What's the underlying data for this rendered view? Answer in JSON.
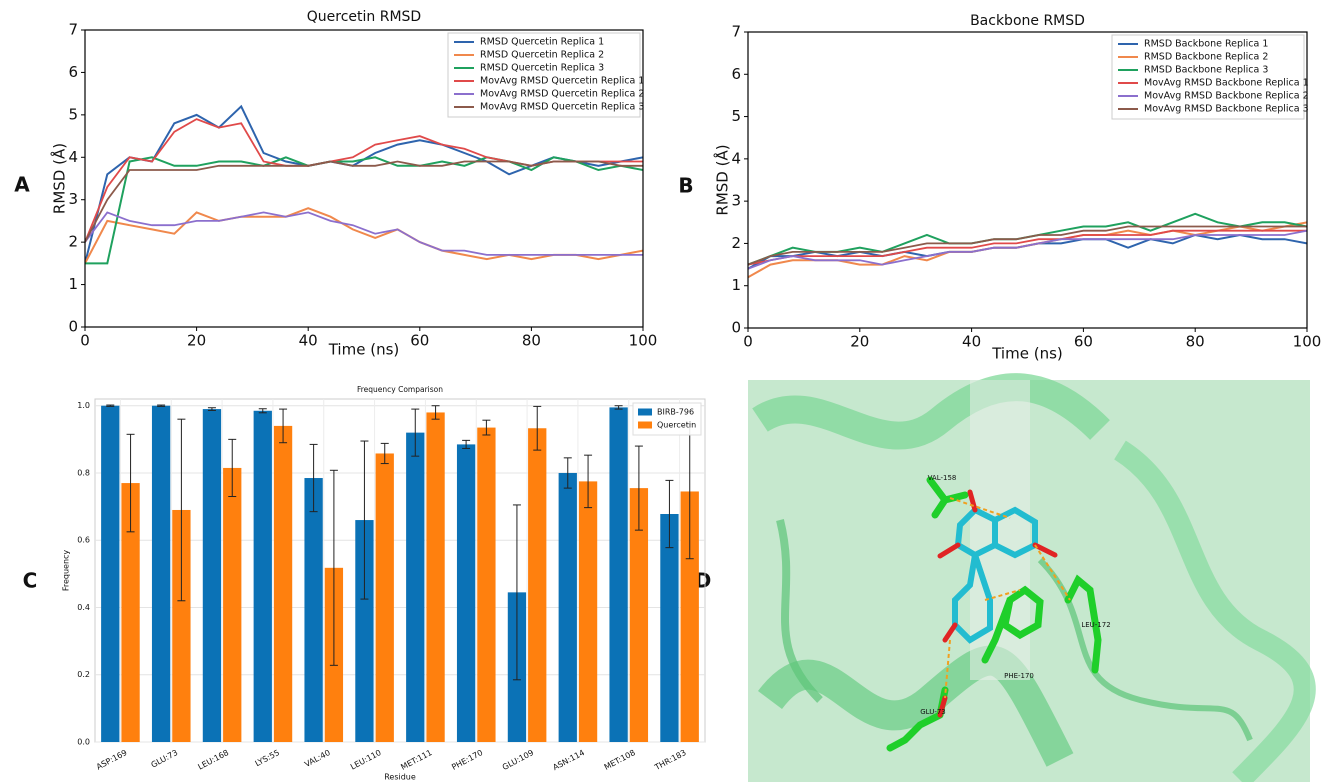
{
  "panel_labels": [
    "A",
    "B",
    "C",
    "D"
  ],
  "structure": {
    "labels": [
      "VAL-158",
      "LEU-172",
      "PHE-170",
      "GLU-73"
    ]
  },
  "chart_data": [
    {
      "type": "line",
      "title": "Quercetin  RMSD",
      "x_label": "Time (ns)",
      "y_label": "RMSD (Å)",
      "x": [
        0,
        4,
        8,
        12,
        16,
        20,
        24,
        28,
        32,
        36,
        40,
        44,
        48,
        52,
        56,
        60,
        64,
        68,
        72,
        76,
        80,
        84,
        88,
        92,
        96,
        100
      ],
      "xlim": [
        0,
        100
      ],
      "ylim": [
        0,
        7
      ],
      "xticks": [
        0,
        20,
        40,
        60,
        80,
        100
      ],
      "yticks": [
        0,
        1,
        2,
        3,
        4,
        5,
        6,
        7
      ],
      "legend": "upper right",
      "series": [
        {
          "name": "RMSD Quercetin Replica 1",
          "color": "#2e64ad",
          "values": [
            1.5,
            3.6,
            4.0,
            3.9,
            4.8,
            5.0,
            4.7,
            5.2,
            4.1,
            3.9,
            3.8,
            3.9,
            3.8,
            4.1,
            4.3,
            4.4,
            4.3,
            4.1,
            3.9,
            3.6,
            3.8,
            4.0,
            3.9,
            3.8,
            3.9,
            4.0
          ]
        },
        {
          "name": "RMSD Quercetin Replica 2",
          "color": "#f0884c",
          "values": [
            1.5,
            2.5,
            2.4,
            2.3,
            2.2,
            2.7,
            2.5,
            2.6,
            2.6,
            2.6,
            2.8,
            2.6,
            2.3,
            2.1,
            2.3,
            2.0,
            1.8,
            1.7,
            1.6,
            1.7,
            1.6,
            1.7,
            1.7,
            1.6,
            1.7,
            1.8
          ]
        },
        {
          "name": "RMSD Quercetin Replica 3",
          "color": "#1fa15e",
          "values": [
            1.5,
            1.5,
            3.9,
            4.0,
            3.8,
            3.8,
            3.9,
            3.9,
            3.8,
            4.0,
            3.8,
            3.9,
            3.9,
            4.0,
            3.8,
            3.8,
            3.9,
            3.8,
            4.0,
            3.9,
            3.7,
            4.0,
            3.9,
            3.7,
            3.8,
            3.7
          ]
        },
        {
          "name": "MovAvg RMSD Quercetin Replica 1",
          "color": "#e04a4a",
          "values": [
            2.0,
            3.3,
            4.0,
            3.9,
            4.6,
            4.9,
            4.7,
            4.8,
            3.9,
            3.8,
            3.8,
            3.9,
            4.0,
            4.3,
            4.4,
            4.5,
            4.3,
            4.2,
            4.0,
            3.9,
            3.8,
            3.9,
            3.9,
            3.9,
            3.9,
            3.9
          ]
        },
        {
          "name": "MovAvg RMSD Quercetin Replica 2",
          "color": "#8b6fcd",
          "values": [
            2.0,
            2.7,
            2.5,
            2.4,
            2.4,
            2.5,
            2.5,
            2.6,
            2.7,
            2.6,
            2.7,
            2.5,
            2.4,
            2.2,
            2.3,
            2.0,
            1.8,
            1.8,
            1.7,
            1.7,
            1.7,
            1.7,
            1.7,
            1.7,
            1.7,
            1.7
          ]
        },
        {
          "name": "MovAvg RMSD Quercetin Replica 3",
          "color": "#8c5a4b",
          "values": [
            2.0,
            3.0,
            3.7,
            3.7,
            3.7,
            3.7,
            3.8,
            3.8,
            3.8,
            3.8,
            3.8,
            3.9,
            3.8,
            3.8,
            3.9,
            3.8,
            3.8,
            3.9,
            3.9,
            3.9,
            3.8,
            3.9,
            3.9,
            3.9,
            3.8,
            3.8
          ]
        }
      ]
    },
    {
      "type": "line",
      "title": "Backbone RMSD",
      "x_label": "Time (ns)",
      "y_label": "RMSD (Å)",
      "x": [
        0,
        4,
        8,
        12,
        16,
        20,
        24,
        28,
        32,
        36,
        40,
        44,
        48,
        52,
        56,
        60,
        64,
        68,
        72,
        76,
        80,
        84,
        88,
        92,
        96,
        100
      ],
      "xlim": [
        0,
        100
      ],
      "ylim": [
        0,
        7
      ],
      "xticks": [
        0,
        20,
        40,
        60,
        80,
        100
      ],
      "yticks": [
        0,
        1,
        2,
        3,
        4,
        5,
        6,
        7
      ],
      "legend": "upper right",
      "series": [
        {
          "name": "RMSD Backbone Replica 1",
          "color": "#2e64ad",
          "values": [
            1.4,
            1.7,
            1.7,
            1.8,
            1.7,
            1.8,
            1.7,
            1.8,
            1.7,
            1.8,
            1.8,
            1.9,
            1.9,
            2.0,
            2.0,
            2.1,
            2.1,
            1.9,
            2.1,
            2.0,
            2.2,
            2.1,
            2.2,
            2.1,
            2.1,
            2.0
          ]
        },
        {
          "name": "RMSD Backbone Replica 2",
          "color": "#f0884c",
          "values": [
            1.2,
            1.5,
            1.6,
            1.6,
            1.6,
            1.5,
            1.5,
            1.7,
            1.6,
            1.8,
            1.8,
            1.9,
            1.9,
            2.0,
            2.1,
            2.2,
            2.2,
            2.3,
            2.2,
            2.3,
            2.2,
            2.3,
            2.4,
            2.3,
            2.4,
            2.5
          ]
        },
        {
          "name": "RMSD Backbone Replica 3",
          "color": "#1fa15e",
          "values": [
            1.5,
            1.7,
            1.9,
            1.8,
            1.8,
            1.9,
            1.8,
            2.0,
            2.2,
            2.0,
            2.0,
            2.1,
            2.1,
            2.2,
            2.3,
            2.4,
            2.4,
            2.5,
            2.3,
            2.5,
            2.7,
            2.5,
            2.4,
            2.5,
            2.5,
            2.4
          ]
        },
        {
          "name": "MovAvg RMSD Backbone Replica 1",
          "color": "#e04a4a",
          "values": [
            1.5,
            1.6,
            1.7,
            1.7,
            1.7,
            1.7,
            1.7,
            1.8,
            1.9,
            1.9,
            1.9,
            2.0,
            2.0,
            2.1,
            2.1,
            2.2,
            2.2,
            2.2,
            2.2,
            2.3,
            2.3,
            2.3,
            2.3,
            2.3,
            2.3,
            2.3
          ]
        },
        {
          "name": "MovAvg RMSD Backbone Replica 2",
          "color": "#8b6fcd",
          "values": [
            1.4,
            1.6,
            1.7,
            1.6,
            1.6,
            1.6,
            1.5,
            1.6,
            1.7,
            1.8,
            1.8,
            1.9,
            1.9,
            2.0,
            2.1,
            2.1,
            2.1,
            2.1,
            2.1,
            2.1,
            2.2,
            2.2,
            2.2,
            2.2,
            2.2,
            2.3
          ]
        },
        {
          "name": "MovAvg RMSD Backbone Replica 3",
          "color": "#8c5a4b",
          "values": [
            1.5,
            1.7,
            1.8,
            1.8,
            1.8,
            1.8,
            1.8,
            1.9,
            2.0,
            2.0,
            2.0,
            2.1,
            2.1,
            2.2,
            2.2,
            2.3,
            2.3,
            2.4,
            2.4,
            2.4,
            2.4,
            2.4,
            2.4,
            2.4,
            2.4,
            2.4
          ]
        }
      ]
    },
    {
      "type": "bar",
      "title": "Frequency Comparison",
      "x_label": "Residue",
      "y_label": "Frequency",
      "grid": true,
      "legend": "upper right",
      "categories": [
        "ASP:169",
        "GLU:73",
        "LEU:168",
        "LYS:55",
        "VAL:40",
        "LEU:110",
        "MET:111",
        "PHE:170",
        "GLU:109",
        "ASN:114",
        "MET:108",
        "THR:183"
      ],
      "ylim": [
        0,
        1.02
      ],
      "yticks": [
        {
          "value": 0,
          "label": "0.0"
        },
        {
          "value": 0.2,
          "label": "0.2"
        },
        {
          "value": 0.4,
          "label": "0.4"
        },
        {
          "value": 0.6,
          "label": "0.6"
        },
        {
          "value": 0.8,
          "label": "0.8"
        },
        {
          "value": 1,
          "label": "1.0"
        }
      ],
      "series": [
        {
          "name": "BIRB-796",
          "color": "#0b72b6",
          "values": [
            1.0,
            1.0,
            0.99,
            0.985,
            0.785,
            0.66,
            0.92,
            0.885,
            0.445,
            0.8,
            0.995,
            0.678
          ],
          "errors": [
            0.002,
            0.002,
            0.004,
            0.006,
            0.1,
            0.235,
            0.07,
            0.012,
            0.26,
            0.045,
            0.005,
            0.1
          ]
        },
        {
          "name": "Quercetin",
          "color": "#ff800e",
          "values": [
            0.77,
            0.69,
            0.815,
            0.94,
            0.518,
            0.858,
            0.98,
            0.935,
            0.933,
            0.775,
            0.755,
            0.745
          ],
          "errors": [
            0.145,
            0.27,
            0.085,
            0.05,
            0.29,
            0.03,
            0.02,
            0.022,
            0.065,
            0.078,
            0.125,
            0.2
          ]
        }
      ]
    }
  ]
}
